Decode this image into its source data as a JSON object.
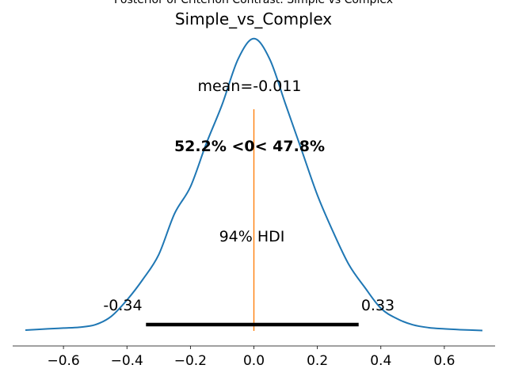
{
  "chart_data": {
    "type": "area",
    "suptitle": "Posterior of Criterion Contrast: Simple vs Complex",
    "title": "Simple_vs_Complex",
    "xlabel": "",
    "ylabel": "",
    "xlim": [
      -0.76,
      0.76
    ],
    "xticks": [
      -0.6,
      -0.4,
      -0.2,
      0.0,
      0.2,
      0.4,
      0.6
    ],
    "xtick_labels": [
      "−0.6",
      "−0.4",
      "−0.2",
      "0.0",
      "0.2",
      "0.4",
      "0.6"
    ],
    "grid": false,
    "mean_label": "mean=-0.011",
    "ref_value": 0.0,
    "ref_label": "52.2% <0< 47.8%",
    "hdi_label": "94% HDI",
    "hdi": [
      -0.34,
      0.33
    ],
    "hdi_low_label": "-0.34",
    "hdi_high_label": "0.33",
    "density": {
      "x": [
        -0.72,
        -0.65,
        -0.6,
        -0.55,
        -0.5,
        -0.45,
        -0.4,
        -0.35,
        -0.3,
        -0.25,
        -0.2,
        -0.15,
        -0.1,
        -0.05,
        0.0,
        0.05,
        0.1,
        0.15,
        0.2,
        0.25,
        0.3,
        0.35,
        0.4,
        0.45,
        0.5,
        0.55,
        0.6,
        0.65,
        0.72
      ],
      "y": [
        0.2,
        0.5,
        0.7,
        0.9,
        1.5,
        3.5,
        7.5,
        12.5,
        18.5,
        28.5,
        35.0,
        45.5,
        55.0,
        66.0,
        71.0,
        66.0,
        55.0,
        44.0,
        33.0,
        24.0,
        16.0,
        10.5,
        5.5,
        3.0,
        1.5,
        0.8,
        0.5,
        0.3,
        0.1
      ]
    },
    "colors": {
      "curve": "#1f77b4",
      "ref": "#ff7f0e",
      "hdi": "#000000"
    }
  }
}
